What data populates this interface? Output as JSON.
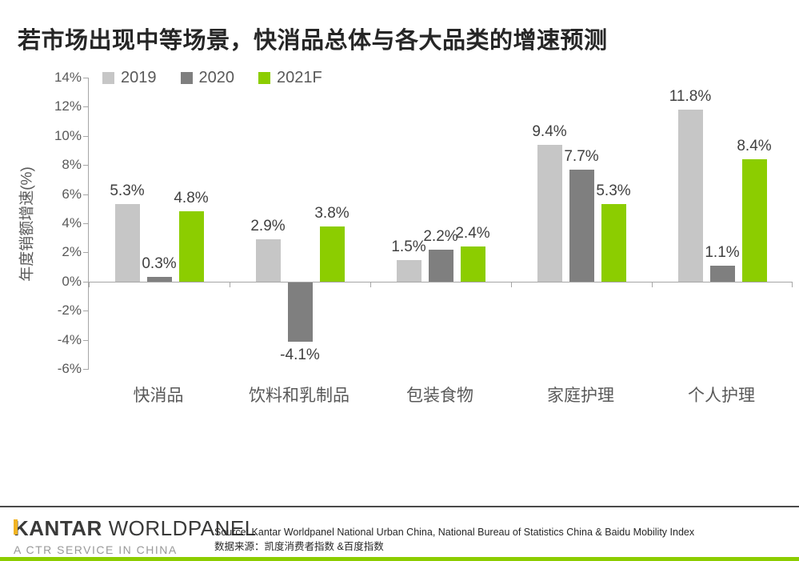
{
  "title": "若市场出现中等场景，快消品总体与各大品类的增速预测",
  "chart_data": {
    "type": "bar",
    "title": "若市场出现中等场景，快消品总体与各大品类的增速预测",
    "xlabel": "",
    "ylabel": "年度销额增速(%)",
    "ylim": [
      -6,
      14
    ],
    "grid": false,
    "legend_position": "top",
    "axis_color": "#a6a6a6",
    "categories": [
      "快消品",
      "饮料和乳制品",
      "包装食物",
      "家庭护理",
      "个人护理"
    ],
    "series": [
      {
        "name": "2019",
        "color": "#c6c6c6",
        "values": [
          5.3,
          2.9,
          1.5,
          9.4,
          11.8
        ],
        "labels": [
          "5.3%",
          "2.9%",
          "1.5%",
          "9.4%",
          "11.8%"
        ]
      },
      {
        "name": "2020",
        "color": "#7f7f7f",
        "values": [
          0.3,
          -4.1,
          2.2,
          7.7,
          1.1
        ],
        "labels": [
          "0.3%",
          "-4.1%",
          "2.2%",
          "7.7%",
          "1.1%"
        ]
      },
      {
        "name": "2021F",
        "color": "#8ccd00",
        "values": [
          4.8,
          3.8,
          2.4,
          5.3,
          8.4
        ],
        "labels": [
          "4.8%",
          "3.8%",
          "2.4%",
          "5.3%",
          "8.4%"
        ]
      }
    ],
    "yticks": [
      {
        "value": 14,
        "label": "14%"
      },
      {
        "value": 12,
        "label": "12%"
      },
      {
        "value": 10,
        "label": "10%"
      },
      {
        "value": 8,
        "label": "8%"
      },
      {
        "value": 6,
        "label": "6%"
      },
      {
        "value": 4,
        "label": "4%"
      },
      {
        "value": 2,
        "label": "2%"
      },
      {
        "value": 0,
        "label": "0%"
      },
      {
        "value": -2,
        "label": "-2%"
      },
      {
        "value": -4,
        "label": "-4%"
      },
      {
        "value": -6,
        "label": "-6%"
      }
    ]
  },
  "footer": {
    "logo_primary": "KANTAR",
    "logo_secondary": " WORLDPANEL",
    "logo_tagline": "A CTR SERVICE IN CHINA",
    "logo_gold": "#f0b323",
    "source_en": "Source: Kantar Worldpanel National Urban China, National Bureau of Statistics China & Baidu Mobility Index",
    "source_cn": "数据来源：凯度消费者指数 &百度指数",
    "accent_color": "#8ccd00"
  }
}
